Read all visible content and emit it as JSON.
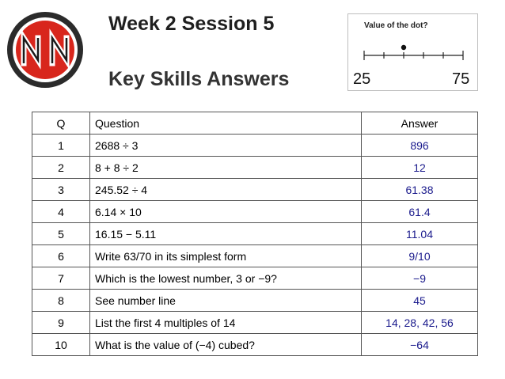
{
  "header": {
    "title": "Week 2  Session 5",
    "subtitle": "Key Skills Answers"
  },
  "logo": {
    "letters": "NN",
    "ring_color": "#2b2b2b",
    "inner_color": "#d8261c"
  },
  "number_line": {
    "caption": "Value of the dot?",
    "min_label": "25",
    "max_label": "75",
    "min": 25,
    "max": 75,
    "dot_value": 45
  },
  "table": {
    "headers": {
      "q": "Q",
      "question": "Question",
      "answer": "Answer"
    },
    "rows": [
      {
        "q": "1",
        "question": "2688 ÷ 3",
        "answer": "896"
      },
      {
        "q": "2",
        "question": "8 + 8 ÷ 2",
        "answer": "12"
      },
      {
        "q": "3",
        "question": "245.52 ÷ 4",
        "answer": "61.38"
      },
      {
        "q": "4",
        "question": "6.14 × 10",
        "answer": "61.4"
      },
      {
        "q": "5",
        "question": "16.15 − 5.11",
        "answer": "11.04"
      },
      {
        "q": "6",
        "question": "Write 63/70 in its simplest form",
        "answer": "9/10"
      },
      {
        "q": "7",
        "question": "Which is the lowest number, 3 or −9?",
        "answer": "−9"
      },
      {
        "q": "8",
        "question": "See number line",
        "answer": "45"
      },
      {
        "q": "9",
        "question": "List the first 4 multiples of 14",
        "answer": "14, 28, 42, 56"
      },
      {
        "q": "10",
        "question": "What is the value of (−4) cubed?",
        "answer": "−64"
      }
    ]
  },
  "colors": {
    "answer_text": "#1a1a8c"
  }
}
